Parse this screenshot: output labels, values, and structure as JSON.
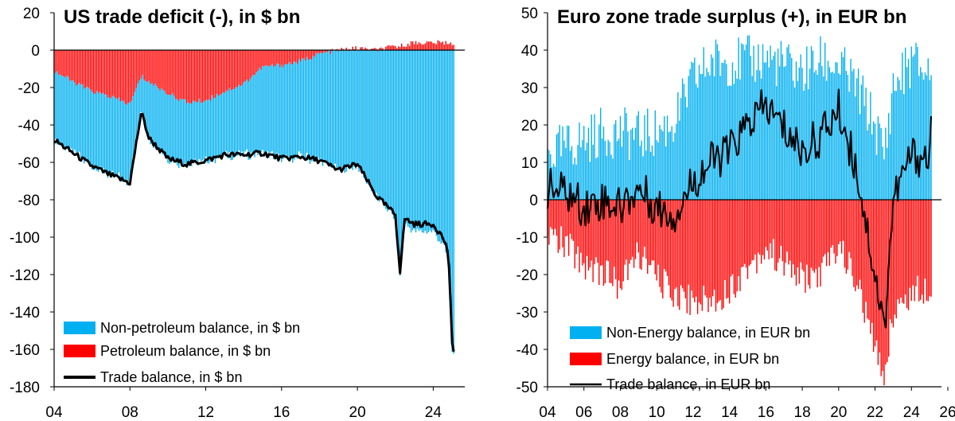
{
  "chart_data": [
    {
      "type": "area",
      "title": "US trade deficit (-), in $ bn",
      "xlabel": "",
      "ylabel": "",
      "x_ticks": [
        "04",
        "08",
        "12",
        "16",
        "20",
        "24"
      ],
      "x_tick_values": [
        2004,
        2008,
        2012,
        2016,
        2020,
        2024
      ],
      "xlim": [
        2004,
        2026
      ],
      "ylim": [
        -180,
        20
      ],
      "y_ticks": [
        20,
        0,
        -20,
        -40,
        -60,
        -80,
        -100,
        -120,
        -140,
        -160,
        -180
      ],
      "grid": false,
      "legend_position": "bottom-left",
      "series": [
        {
          "name": "Non-petroleum balance, in $ bn",
          "kind": "bar",
          "color": "#00B0F0",
          "x": [
            2004.0,
            2005.0,
            2006.0,
            2007.0,
            2008.0,
            2008.6,
            2009.0,
            2010.0,
            2011.0,
            2012.0,
            2013.0,
            2014.0,
            2015.0,
            2016.0,
            2017.0,
            2018.0,
            2019.0,
            2020.0,
            2021.0,
            2022.0,
            2022.25,
            2022.5,
            2023.0,
            2024.0,
            2024.5,
            2024.8,
            2025.0,
            2025.1
          ],
          "values": [
            -37,
            -38,
            -40,
            -42,
            -42,
            -19,
            -30,
            -35,
            -33,
            -32,
            -34,
            -38,
            -46,
            -50,
            -51,
            -57,
            -64,
            -62,
            -78,
            -90,
            -120,
            -93,
            -97,
            -97,
            -104,
            -112,
            -162,
            -160
          ]
        },
        {
          "name": "Petroleum balance, in $ bn",
          "kind": "bar",
          "color": "#FF0000",
          "x": [
            2004.0,
            2005.0,
            2006.0,
            2007.0,
            2008.0,
            2008.6,
            2009.0,
            2010.0,
            2011.0,
            2012.0,
            2013.0,
            2014.0,
            2015.0,
            2016.0,
            2017.0,
            2018.0,
            2019.0,
            2020.0,
            2021.0,
            2022.0,
            2022.25,
            2022.5,
            2023.0,
            2024.0,
            2024.5,
            2024.8,
            2025.0,
            2025.1
          ],
          "values": [
            -11,
            -17,
            -22,
            -25,
            -29,
            -14,
            -17,
            -23,
            -28,
            -27,
            -22,
            -18,
            -9,
            -8,
            -6,
            -2,
            0,
            1,
            0,
            2,
            2,
            3,
            4,
            4,
            4,
            4,
            4,
            3
          ]
        },
        {
          "name": "Trade balance, in $ bn",
          "kind": "line",
          "color": "#000000",
          "x": [
            2004.0,
            2005.0,
            2006.0,
            2007.0,
            2008.0,
            2008.6,
            2009.0,
            2010.0,
            2011.0,
            2012.0,
            2013.0,
            2014.0,
            2015.0,
            2016.0,
            2017.0,
            2018.0,
            2019.0,
            2020.0,
            2021.0,
            2022.0,
            2022.25,
            2022.5,
            2023.0,
            2024.0,
            2024.5,
            2024.8,
            2025.0,
            2025.1
          ],
          "values": [
            -48,
            -55,
            -62,
            -67,
            -71,
            -33,
            -47,
            -58,
            -61,
            -59,
            -56,
            -56,
            -55,
            -58,
            -57,
            -59,
            -64,
            -61,
            -78,
            -88,
            -118,
            -90,
            -93,
            -93,
            -100,
            -108,
            -158,
            -162
          ]
        }
      ]
    },
    {
      "type": "area",
      "title": "Euro zone trade surplus (+), in EUR bn",
      "xlabel": "",
      "ylabel": "",
      "x_ticks": [
        "04",
        "06",
        "08",
        "10",
        "12",
        "14",
        "16",
        "18",
        "20",
        "22",
        "24",
        "26"
      ],
      "x_tick_values": [
        2004,
        2006,
        2008,
        2010,
        2012,
        2014,
        2016,
        2018,
        2020,
        2022,
        2024,
        2026
      ],
      "xlim": [
        2004,
        2026
      ],
      "ylim": [
        -50,
        50
      ],
      "y_ticks": [
        50,
        40,
        30,
        20,
        10,
        0,
        -10,
        -20,
        -30,
        -40,
        -50
      ],
      "grid": false,
      "legend_position": "bottom-left",
      "series": [
        {
          "name": "Non-Energy balance, in EUR bn",
          "kind": "bar",
          "color": "#00B0F0",
          "x": [
            2004.0,
            2005.0,
            2006.0,
            2007.0,
            2008.0,
            2009.0,
            2010.0,
            2011.0,
            2012.0,
            2013.0,
            2014.0,
            2015.0,
            2016.0,
            2017.0,
            2018.0,
            2019.0,
            2020.0,
            2021.0,
            2022.0,
            2022.5,
            2023.0,
            2024.0,
            2025.0,
            2025.1
          ],
          "values": [
            12,
            14,
            16,
            18,
            18,
            17,
            18,
            21,
            32,
            37,
            37,
            37,
            38,
            36,
            34,
            37,
            36,
            30,
            20,
            12,
            30,
            37,
            34,
            37
          ]
        },
        {
          "name": "Energy balance, in EUR bn",
          "kind": "bar",
          "color": "#FF0000",
          "x": [
            2004.0,
            2005.0,
            2006.0,
            2007.0,
            2008.0,
            2009.0,
            2010.0,
            2011.0,
            2012.0,
            2013.0,
            2014.0,
            2015.0,
            2016.0,
            2017.0,
            2018.0,
            2019.0,
            2020.0,
            2021.0,
            2022.0,
            2022.5,
            2023.0,
            2024.0,
            2025.0,
            2025.1
          ],
          "values": [
            -9,
            -12,
            -17,
            -19,
            -23,
            -14,
            -21,
            -25,
            -27,
            -27,
            -24,
            -18,
            -13,
            -17,
            -21,
            -20,
            -12,
            -22,
            -40,
            -47,
            -30,
            -25,
            -23,
            -22
          ]
        },
        {
          "name": "Trade balance, in EUR bn",
          "kind": "line",
          "color": "#000000",
          "x": [
            2004.0,
            2005.0,
            2006.0,
            2007.0,
            2008.0,
            2009.0,
            2010.0,
            2011.0,
            2012.0,
            2013.0,
            2014.0,
            2015.0,
            2016.0,
            2017.0,
            2018.0,
            2019.0,
            2020.0,
            2021.0,
            2022.0,
            2022.5,
            2023.0,
            2024.0,
            2025.0,
            2025.1
          ],
          "values": [
            3,
            2,
            -2,
            0,
            -2,
            3,
            -2,
            -4,
            5,
            10,
            13,
            20,
            25,
            19,
            13,
            17,
            24,
            8,
            -20,
            -35,
            0,
            12,
            11,
            24
          ]
        }
      ]
    }
  ]
}
